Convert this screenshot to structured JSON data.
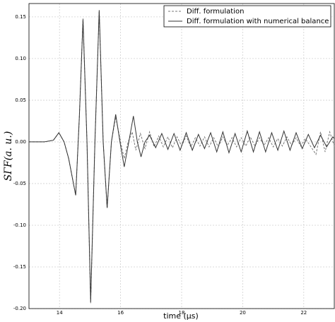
{
  "chart_data": {
    "type": "line",
    "xlabel": "time (μs)",
    "ylabel": "SΓF(a. u.)",
    "xlim": [
      13,
      23
    ],
    "ylim": [
      -0.2,
      0.166
    ],
    "xticks": [
      14,
      16,
      18,
      20,
      22
    ],
    "yticks": [
      0.15,
      {
        "value": 0.1,
        "label": "0.10"
      },
      0.05,
      {
        "value": 0,
        "label": "0.00"
      },
      -0.05,
      {
        "value": -0.1,
        "label": "-0.10"
      },
      -0.15,
      {
        "value": -0.2,
        "label": "-0.20"
      }
    ],
    "grid": true,
    "legend": "upper right",
    "series": [
      {
        "name": "Diff. formulation",
        "color": "#777777",
        "dash": true,
        "x": [
          13.0,
          13.5,
          13.8,
          13.98,
          14.15,
          14.3,
          14.53,
          14.65,
          14.77,
          14.9,
          15.02,
          15.16,
          15.3,
          15.43,
          15.56,
          15.7,
          15.84,
          16.0,
          16.12,
          16.25,
          16.38,
          16.5,
          16.65,
          16.8,
          16.95,
          17.1,
          17.25,
          17.4,
          17.55,
          17.7,
          17.85,
          18.0,
          18.15,
          18.3,
          18.45,
          18.6,
          18.75,
          18.9,
          19.05,
          19.2,
          19.35,
          19.5,
          19.65,
          19.8,
          19.95,
          20.1,
          20.25,
          20.4,
          20.55,
          20.7,
          20.85,
          21.0,
          21.15,
          21.3,
          21.45,
          21.6,
          21.75,
          21.9,
          22.05,
          22.2,
          22.4,
          22.55,
          22.7,
          22.85,
          23.0
        ],
        "values": [
          0,
          0,
          0.002,
          0.011,
          0,
          -0.02,
          -0.064,
          0.03,
          0.148,
          0,
          -0.194,
          0,
          0.157,
          0,
          -0.08,
          0,
          0.03,
          0,
          -0.02,
          0,
          0.012,
          -0.01,
          0.01,
          -0.008,
          0.012,
          -0.006,
          0.007,
          -0.006,
          0.006,
          -0.007,
          0.006,
          -0.005,
          0.007,
          -0.006,
          0.005,
          -0.005,
          0.006,
          -0.006,
          0.005,
          -0.006,
          0.006,
          -0.004,
          0.005,
          -0.006,
          0.005,
          -0.005,
          0.006,
          -0.005,
          0.005,
          -0.004,
          0.005,
          -0.006,
          0.004,
          -0.005,
          0.006,
          -0.004,
          0.005,
          -0.005,
          0.004,
          -0.004,
          -0.015,
          0.012,
          -0.012,
          0.012,
          -0.005
        ]
      },
      {
        "name": "Diff. formulation with numerical balance",
        "color": "#333333",
        "dash": false,
        "x": [
          13.0,
          13.5,
          13.8,
          13.98,
          14.15,
          14.3,
          14.53,
          14.65,
          14.77,
          14.9,
          15.02,
          15.16,
          15.3,
          15.43,
          15.56,
          15.7,
          15.84,
          15.98,
          16.12,
          16.27,
          16.42,
          16.55,
          16.67,
          16.8,
          16.95,
          17.15,
          17.35,
          17.55,
          17.75,
          17.95,
          18.15,
          18.35,
          18.55,
          18.75,
          18.95,
          19.15,
          19.35,
          19.55,
          19.75,
          19.95,
          20.15,
          20.35,
          20.55,
          20.75,
          20.95,
          21.15,
          21.35,
          21.55,
          21.75,
          21.95,
          22.15,
          22.35,
          22.55,
          22.75,
          22.95,
          23.0
        ],
        "values": [
          0,
          0,
          0.002,
          0.011,
          0,
          -0.02,
          -0.064,
          0.03,
          0.147,
          0,
          -0.192,
          0,
          0.158,
          0,
          -0.079,
          0,
          0.033,
          0,
          -0.03,
          0,
          0.031,
          0,
          -0.018,
          0,
          0.008,
          -0.007,
          0.01,
          -0.009,
          0.01,
          -0.01,
          0.011,
          -0.01,
          0.009,
          -0.008,
          0.011,
          -0.012,
          0.012,
          -0.013,
          0.01,
          -0.012,
          0.013,
          -0.012,
          0.012,
          -0.012,
          0.011,
          -0.01,
          0.013,
          -0.01,
          0.011,
          -0.008,
          0.009,
          -0.007,
          0.008,
          -0.006,
          0.006,
          0.004
        ]
      }
    ]
  }
}
